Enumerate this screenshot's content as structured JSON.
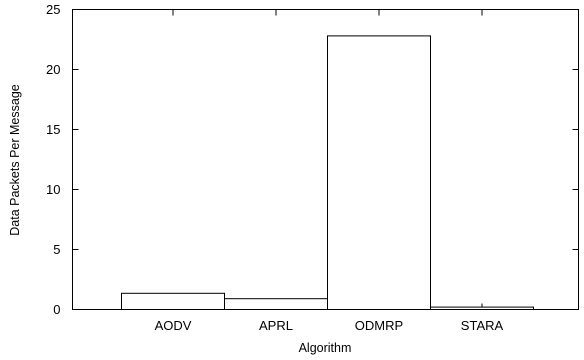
{
  "chart_data": {
    "type": "bar",
    "title": "",
    "xlabel": "Algorithm",
    "ylabel": "Data Packets Per Message",
    "categories": [
      "AODV",
      "APRL",
      "ODMRP",
      "STARA"
    ],
    "values": [
      1.35,
      0.9,
      22.8,
      0.2
    ],
    "ylim": [
      0,
      25
    ],
    "yticks": [
      0,
      5,
      10,
      15,
      20,
      25
    ],
    "grid": false,
    "legend": "none"
  }
}
